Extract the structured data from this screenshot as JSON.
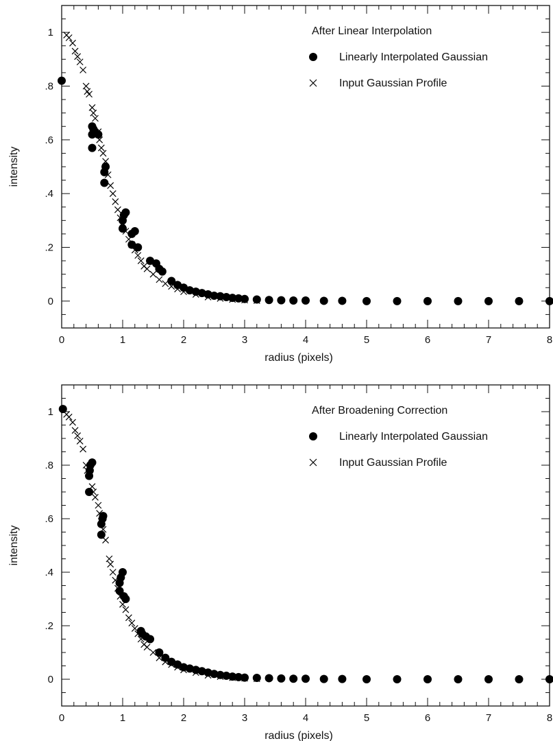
{
  "chart_data": [
    {
      "type": "scatter",
      "title": "After Linear Interpolation",
      "xlabel": "radius (pixels)",
      "ylabel": "intensity",
      "xlim": [
        0,
        8
      ],
      "ylim": [
        -0.1,
        1.1
      ],
      "xticks": [
        0,
        1,
        2,
        3,
        4,
        5,
        6,
        7,
        8
      ],
      "xtick_labels": [
        "0",
        "1",
        "2",
        "3",
        "4",
        "5",
        "6",
        "7",
        "8"
      ],
      "yticks": [
        0,
        0.2,
        0.4,
        0.6,
        0.8,
        1.0
      ],
      "ytick_labels": [
        "0",
        ".2",
        ".4",
        ".6",
        ".8",
        "1"
      ],
      "grid": false,
      "legend_position": "top-right",
      "legend_title": "After Linear Interpolation",
      "series": [
        {
          "name": "Linearly Interpolated Gaussian",
          "marker": "filled-circle",
          "color": "#000000",
          "x": [
            0.0,
            0.5,
            0.5,
            0.5,
            0.52,
            0.55,
            0.6,
            0.7,
            0.7,
            0.72,
            1.0,
            1.0,
            1.02,
            1.05,
            1.15,
            1.15,
            1.2,
            1.25,
            1.45,
            1.55,
            1.6,
            1.65,
            1.8,
            1.9,
            2.0,
            2.1,
            2.2,
            2.3,
            2.4,
            2.5,
            2.6,
            2.7,
            2.8,
            2.9,
            3.0,
            3.2,
            3.4,
            3.6,
            3.8,
            4.0,
            4.3,
            4.6,
            5.0,
            5.5,
            6.0,
            6.5,
            7.0,
            7.5,
            8.0
          ],
          "y": [
            0.82,
            0.57,
            0.62,
            0.65,
            0.64,
            0.63,
            0.62,
            0.44,
            0.48,
            0.5,
            0.27,
            0.3,
            0.32,
            0.33,
            0.21,
            0.25,
            0.26,
            0.2,
            0.15,
            0.14,
            0.12,
            0.11,
            0.075,
            0.06,
            0.05,
            0.04,
            0.035,
            0.03,
            0.025,
            0.02,
            0.018,
            0.015,
            0.012,
            0.01,
            0.008,
            0.006,
            0.004,
            0.003,
            0.002,
            0.002,
            0.001,
            0.001,
            0.0,
            0.0,
            0.0,
            0.0,
            0.0,
            0.0,
            0.0
          ]
        },
        {
          "name": "Input Gaussian Profile",
          "marker": "cross",
          "color": "#000000",
          "x": [
            0.08,
            0.12,
            0.18,
            0.22,
            0.26,
            0.3,
            0.35,
            0.4,
            0.42,
            0.45,
            0.5,
            0.52,
            0.55,
            0.6,
            0.62,
            0.65,
            0.68,
            0.72,
            0.76,
            0.8,
            0.84,
            0.88,
            0.92,
            0.96,
            1.0,
            1.05,
            1.1,
            1.15,
            1.2,
            1.25,
            1.3,
            1.35,
            1.4,
            1.5,
            1.6,
            1.7,
            1.8,
            1.9,
            2.0,
            2.2,
            2.4,
            2.6,
            2.8,
            3.0,
            3.2
          ],
          "y": [
            0.99,
            0.98,
            0.96,
            0.93,
            0.91,
            0.89,
            0.86,
            0.8,
            0.78,
            0.77,
            0.72,
            0.7,
            0.68,
            0.63,
            0.6,
            0.57,
            0.55,
            0.52,
            0.47,
            0.43,
            0.4,
            0.37,
            0.34,
            0.31,
            0.29,
            0.26,
            0.23,
            0.21,
            0.19,
            0.17,
            0.15,
            0.13,
            0.12,
            0.1,
            0.08,
            0.065,
            0.055,
            0.045,
            0.035,
            0.025,
            0.015,
            0.01,
            0.006,
            0.004,
            0.002
          ]
        }
      ]
    },
    {
      "type": "scatter",
      "title": "After Broadening Correction",
      "xlabel": "radius (pixels)",
      "ylabel": "intensity",
      "xlim": [
        0,
        8
      ],
      "ylim": [
        -0.1,
        1.1
      ],
      "xticks": [
        0,
        1,
        2,
        3,
        4,
        5,
        6,
        7,
        8
      ],
      "xtick_labels": [
        "0",
        "1",
        "2",
        "3",
        "4",
        "5",
        "6",
        "7",
        "8"
      ],
      "yticks": [
        0,
        0.2,
        0.4,
        0.6,
        0.8,
        1.0
      ],
      "ytick_labels": [
        "0",
        ".2",
        ".4",
        ".6",
        ".8",
        "1"
      ],
      "grid": false,
      "legend_position": "top-right",
      "legend_title": "After Broadening Correction",
      "series": [
        {
          "name": "Linearly Interpolated Gaussian",
          "marker": "filled-circle",
          "color": "#000000",
          "x": [
            0.02,
            0.45,
            0.45,
            0.46,
            0.47,
            0.5,
            0.65,
            0.65,
            0.67,
            0.68,
            0.95,
            0.95,
            0.97,
            1.0,
            1.02,
            1.05,
            1.3,
            1.32,
            1.38,
            1.45,
            1.6,
            1.7,
            1.8,
            1.9,
            2.0,
            2.1,
            2.2,
            2.3,
            2.4,
            2.5,
            2.6,
            2.7,
            2.8,
            2.9,
            3.0,
            3.2,
            3.4,
            3.6,
            3.8,
            4.0,
            4.3,
            4.6,
            5.0,
            5.5,
            6.0,
            6.5,
            7.0,
            7.5,
            8.0
          ],
          "y": [
            1.01,
            0.7,
            0.76,
            0.78,
            0.8,
            0.81,
            0.54,
            0.58,
            0.6,
            0.61,
            0.33,
            0.36,
            0.38,
            0.4,
            0.31,
            0.3,
            0.18,
            0.17,
            0.16,
            0.15,
            0.1,
            0.08,
            0.065,
            0.055,
            0.045,
            0.04,
            0.035,
            0.03,
            0.025,
            0.02,
            0.016,
            0.013,
            0.01,
            0.008,
            0.006,
            0.005,
            0.004,
            0.003,
            0.002,
            0.002,
            0.001,
            0.001,
            0.0,
            0.0,
            0.0,
            0.0,
            0.0,
            0.0,
            0.0
          ]
        },
        {
          "name": "Input Gaussian Profile",
          "marker": "cross",
          "color": "#000000",
          "x": [
            0.08,
            0.12,
            0.18,
            0.22,
            0.26,
            0.3,
            0.35,
            0.4,
            0.42,
            0.45,
            0.5,
            0.52,
            0.55,
            0.6,
            0.62,
            0.65,
            0.68,
            0.72,
            0.78,
            0.8,
            0.84,
            0.88,
            0.92,
            0.96,
            1.0,
            1.05,
            1.1,
            1.15,
            1.2,
            1.25,
            1.3,
            1.35,
            1.4,
            1.5,
            1.6,
            1.7,
            1.8,
            1.9,
            2.0,
            2.2,
            2.4,
            2.6,
            2.8,
            3.0,
            3.2
          ],
          "y": [
            0.99,
            0.98,
            0.96,
            0.93,
            0.91,
            0.89,
            0.86,
            0.8,
            0.78,
            0.77,
            0.72,
            0.7,
            0.68,
            0.65,
            0.62,
            0.59,
            0.56,
            0.52,
            0.45,
            0.43,
            0.4,
            0.37,
            0.34,
            0.31,
            0.28,
            0.26,
            0.23,
            0.21,
            0.19,
            0.17,
            0.15,
            0.13,
            0.12,
            0.1,
            0.08,
            0.065,
            0.055,
            0.045,
            0.035,
            0.025,
            0.015,
            0.01,
            0.006,
            0.004,
            0.002
          ]
        }
      ]
    }
  ]
}
